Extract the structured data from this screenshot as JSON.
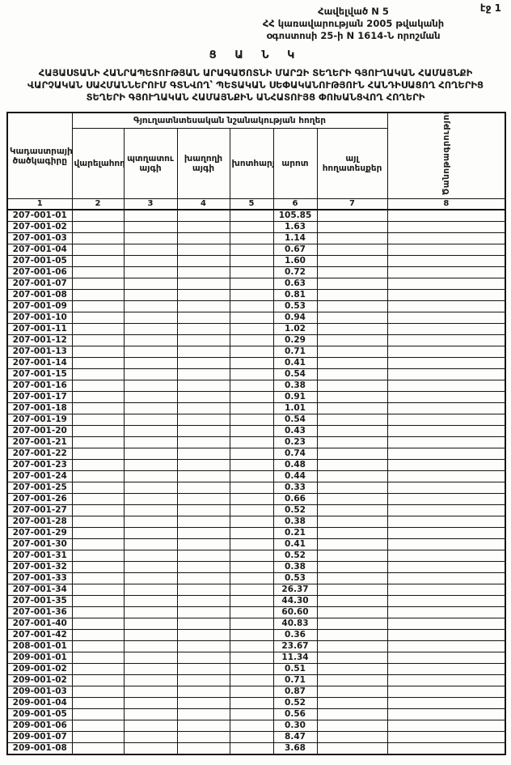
{
  "page": {
    "page_label": "էջ 1",
    "appendix_line1": "Հավելված N 5",
    "appendix_line2": "ՀՀ կառավարության 2005 թվականի",
    "appendix_line3": "օգոստոսի 25-ի N 1614-Ն որոշման",
    "list_heading": "Ց Ա Ն Կ",
    "title": "ՀԱՅԱՍՏԱՆԻ ՀԱՆՐԱՊԵՏՈՒԹՅԱՆ ԱՐԱԳԱԾՈՏՆԻ ՄԱՐԶԻ ՏԵՂԵՐԻ ԳՅՈՒՂԱԿԱՆ ՀԱՄԱՅՆՔԻ ՎԱՐՉԱԿԱՆ ՍԱՀՄԱՆՆԵՐՈՒՄ ԳՏՆՎՈՂ՝ ՊԵՏԱԿԱՆ ՍԵՓԱԿԱՆՈՒԹՅՈՒՆ ՀԱՆԴԻՍԱՑՈՂ ՀՈՂԵՐԻՑ ՏԵՂԵՐԻ ԳՅՈՒՂԱԿԱՆ ՀԱՄԱՅՆՔԻՆ ԱՆՀԱՏՈՒՅՑ ՓՈԽԱՆՑՎՈՂ ՀՈՂԵՐԻ"
  },
  "table": {
    "col_cadastre": "Կադաստրային ծածկագիրը",
    "group_header": "Գյուղատնտեսական նշանակության հողեր",
    "col_note": "Ծանոթագրություն",
    "columns": [
      "վարելահող",
      "պտղատու այգի",
      "խաղողի այգի",
      "խոտհարք",
      "արոտ",
      "այլ հողատեսքեր"
    ],
    "number_row": [
      "1",
      "2",
      "3",
      "4",
      "5",
      "6",
      "7",
      "8"
    ],
    "rows": [
      {
        "code": "207-001-01",
        "arot": "105.85"
      },
      {
        "code": "207-001-02",
        "arot": "1.63"
      },
      {
        "code": "207-001-03",
        "arot": "1.14"
      },
      {
        "code": "207-001-04",
        "arot": "0.67"
      },
      {
        "code": "207-001-05",
        "arot": "1.60"
      },
      {
        "code": "207-001-06",
        "arot": "0.72"
      },
      {
        "code": "207-001-07",
        "arot": "0.63"
      },
      {
        "code": "207-001-08",
        "arot": "0.81"
      },
      {
        "code": "207-001-09",
        "arot": "0.53"
      },
      {
        "code": "207-001-10",
        "arot": "0.94"
      },
      {
        "code": "207-001-11",
        "arot": "1.02"
      },
      {
        "code": "207-001-12",
        "arot": "0.29"
      },
      {
        "code": "207-001-13",
        "arot": "0.71"
      },
      {
        "code": "207-001-14",
        "arot": "0.41"
      },
      {
        "code": "207-001-15",
        "arot": "0.54"
      },
      {
        "code": "207-001-16",
        "arot": "0.38"
      },
      {
        "code": "207-001-17",
        "arot": "0.91"
      },
      {
        "code": "207-001-18",
        "arot": "1.01"
      },
      {
        "code": "207-001-19",
        "arot": "0.54"
      },
      {
        "code": "207-001-20",
        "arot": "0.43"
      },
      {
        "code": "207-001-21",
        "arot": "0.23"
      },
      {
        "code": "207-001-22",
        "arot": "0.74"
      },
      {
        "code": "207-001-23",
        "arot": "0.48"
      },
      {
        "code": "207-001-24",
        "arot": "0.44"
      },
      {
        "code": "207-001-25",
        "arot": "0.33"
      },
      {
        "code": "207-001-26",
        "arot": "0.66"
      },
      {
        "code": "207-001-27",
        "arot": "0.52"
      },
      {
        "code": "207-001-28",
        "arot": "0.38"
      },
      {
        "code": "207-001-29",
        "arot": "0.21"
      },
      {
        "code": "207-001-30",
        "arot": "0.41"
      },
      {
        "code": "207-001-31",
        "arot": "0.52"
      },
      {
        "code": "207-001-32",
        "arot": "0.38"
      },
      {
        "code": "207-001-33",
        "arot": "0.53"
      },
      {
        "code": "207-001-34",
        "arot": "26.37"
      },
      {
        "code": "207-001-35",
        "arot": "44.30"
      },
      {
        "code": "207-001-36",
        "arot": "60.60"
      },
      {
        "code": "207-001-40",
        "arot": "40.83"
      },
      {
        "code": "207-001-42",
        "arot": "0.36"
      },
      {
        "code": "208-001-01",
        "arot": "23.67"
      },
      {
        "code": "209-001-01",
        "arot": "11.34"
      },
      {
        "code": "209-001-02",
        "arot": "0.51"
      },
      {
        "code": "209-001-02",
        "arot": "0.71"
      },
      {
        "code": "209-001-03",
        "arot": "0.87"
      },
      {
        "code": "209-001-04",
        "arot": "0.52"
      },
      {
        "code": "209-001-05",
        "arot": "0.56"
      },
      {
        "code": "209-001-06",
        "arot": "0.30"
      },
      {
        "code": "209-001-07",
        "arot": "8.47"
      },
      {
        "code": "209-001-08",
        "arot": "3.68"
      }
    ]
  }
}
